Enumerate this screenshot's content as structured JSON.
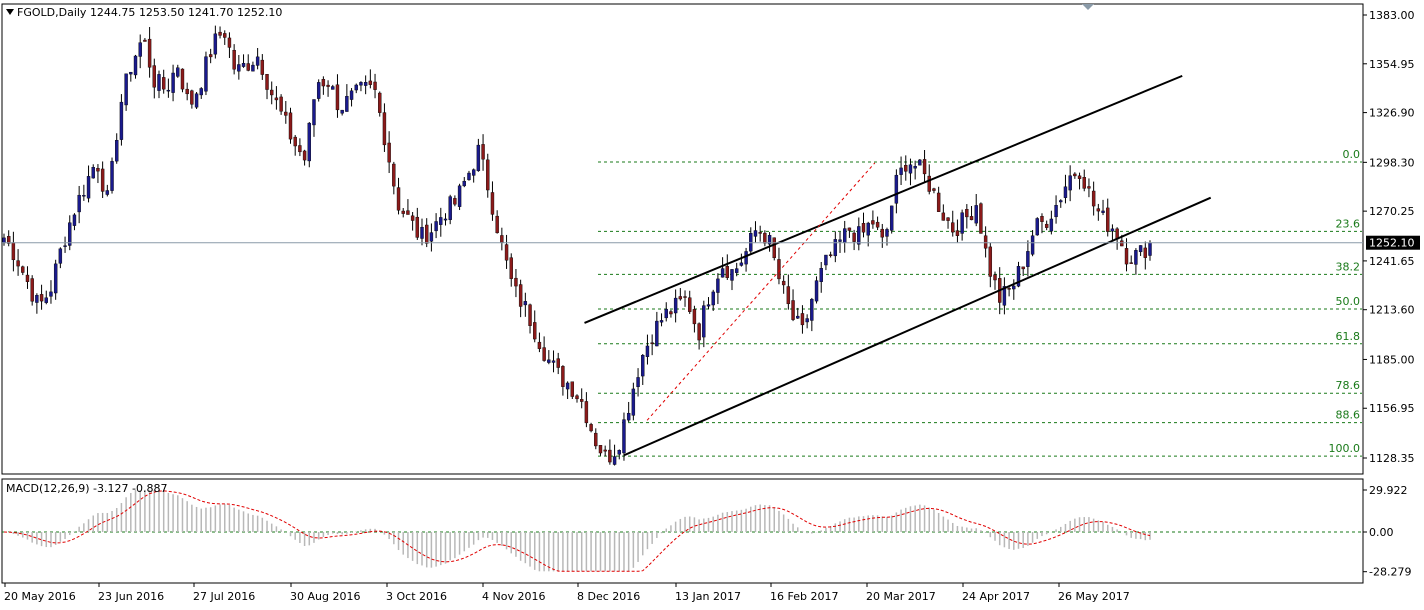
{
  "header": {
    "symbol": "FGOLD,Daily",
    "open": "1244.75",
    "high": "1253.50",
    "low": "1241.70",
    "close": "1252.10"
  },
  "macd": {
    "label": "MACD(12,26,9)",
    "value1": "-3.127",
    "value2": "-0.887"
  },
  "colors": {
    "up_candle": "#1a1a8c",
    "down_candle": "#8b1a1a",
    "wick": "#000000",
    "fib_line": "#1a7a1a",
    "trend_line": "#000000",
    "signal_line": "#e00000",
    "histogram": "#b8b8b8",
    "price_line": "#8a9aa8",
    "last_price_bg": "#000000"
  },
  "chart_data": {
    "type": "candlestick",
    "price_axis": {
      "ticks": [
        "1383.00",
        "1354.95",
        "1326.90",
        "1298.30",
        "1270.25",
        "1241.65",
        "1213.60",
        "1185.00",
        "1156.95",
        "1128.35"
      ],
      "last_price": "1252.10",
      "range": [
        1120,
        1395
      ]
    },
    "macd_axis": {
      "ticks": [
        "29.922",
        "0.00",
        "-28.279"
      ],
      "range": [
        -30,
        31
      ]
    },
    "date_labels": [
      "20 May 2016",
      "23 Jun 2016",
      "27 Jul 2016",
      "30 Aug 2016",
      "3 Oct 2016",
      "4 Nov 2016",
      "8 Dec 2016",
      "13 Jan 2017",
      "16 Feb 2017",
      "20 Mar 2017",
      "24 Apr 2017",
      "26 May 2017"
    ],
    "close_path": [
      1255,
      1245,
      1230,
      1215,
      1225,
      1250,
      1270,
      1285,
      1300,
      1275,
      1330,
      1355,
      1370,
      1345,
      1340,
      1355,
      1330,
      1345,
      1365,
      1375,
      1350,
      1355,
      1360,
      1340,
      1325,
      1310,
      1300,
      1345,
      1345,
      1330,
      1335,
      1340,
      1340,
      1310,
      1275,
      1265,
      1255,
      1260,
      1270,
      1275,
      1290,
      1305,
      1280,
      1250,
      1225,
      1215,
      1200,
      1185,
      1175,
      1170,
      1160,
      1140,
      1128,
      1135,
      1160,
      1185,
      1200,
      1210,
      1215,
      1220,
      1200,
      1225,
      1240,
      1235,
      1245,
      1260,
      1255,
      1230,
      1210,
      1200,
      1225,
      1240,
      1250,
      1260,
      1255,
      1265,
      1250,
      1285,
      1300,
      1295,
      1285,
      1270,
      1260,
      1265,
      1275,
      1240,
      1220,
      1225,
      1240,
      1260,
      1265,
      1275,
      1290,
      1295,
      1275,
      1265,
      1260,
      1245,
      1245,
      1252
    ],
    "fibonacci": [
      {
        "level": "0.0",
        "price": 1298.5
      },
      {
        "level": "23.6",
        "price": 1258.6
      },
      {
        "level": "38.2",
        "price": 1233.9
      },
      {
        "level": "50.0",
        "price": 1214.0
      },
      {
        "level": "61.8",
        "price": 1194.0
      },
      {
        "level": "78.6",
        "price": 1165.6
      },
      {
        "level": "88.6",
        "price": 1148.7
      },
      {
        "level": "100.0",
        "price": 1129.4
      }
    ],
    "channel": {
      "upper": {
        "from": [
          "2016-11-28",
          1206
        ],
        "to": [
          "2017-06-26",
          1348
        ]
      },
      "lower": {
        "from": [
          "2016-12-12",
          1130
        ],
        "to": [
          "2017-07-06",
          1278
        ]
      }
    },
    "fib_diagonal": {
      "from": [
        "2016-12-20",
        1150
      ],
      "to": [
        "2017-03-10",
        1298
      ]
    }
  }
}
